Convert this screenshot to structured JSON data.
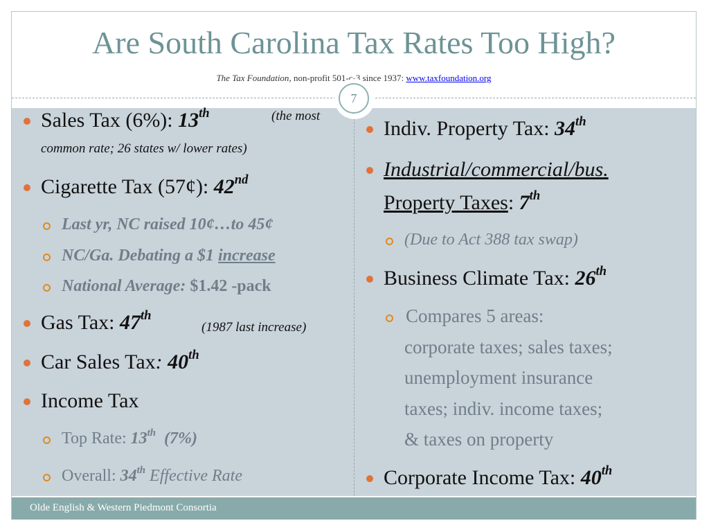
{
  "header": {
    "title": "Are South Carolina Tax Rates Too High?",
    "subtitle_org": "The Tax Foundation",
    "subtitle_desc": ", non-profit 501-c-3 since 1937: ",
    "subtitle_link": "www.taxfoundation.org"
  },
  "slide_number": "7",
  "left": {
    "sales_tax": {
      "label": "Sales Tax (6%): ",
      "rank": "13",
      "suffix": "th",
      "note1": "(the most",
      "note2": "common rate; 26 states w/ lower rates)"
    },
    "cigarette_tax": {
      "label": "Cigarette Tax (57¢): ",
      "rank": "42",
      "suffix": "nd"
    },
    "cig_sub1": "Last yr, NC raised 10¢…to 45¢",
    "cig_sub2_a": "NC/Ga. Debating a $1 ",
    "cig_sub2_b": "increase",
    "cig_sub3_a": "National Average:",
    "cig_sub3_b": " $1.42 -pack",
    "gas_tax": {
      "label": "Gas Tax: ",
      "rank": "47",
      "suffix": "th",
      "note": "(1987 last increase)"
    },
    "car_sales_tax": {
      "label": "Car Sales Tax",
      "colon": ": ",
      "rank": "40",
      "suffix": "th"
    },
    "income_tax": "Income Tax",
    "income_sub1": {
      "label": "Top Rate: ",
      "rank": "13",
      "suffix": "th",
      "extra": "(7%)"
    },
    "income_sub2": {
      "label": "Overall: ",
      "rank": "34",
      "suffix": "th",
      "extra": " Effective Rate"
    }
  },
  "right": {
    "indiv_property": {
      "label": "Indiv. Property Tax: ",
      "rank": "34",
      "suffix": "th"
    },
    "industrial_line1": "Industrial/commercial/bus.",
    "industrial_line2": "Property Taxes",
    "industrial_colon": ": ",
    "industrial_rank": "7",
    "industrial_suffix": "th",
    "act388": "(Due to Act 388 tax swap)",
    "business_climate": {
      "label": "Business Climate Tax: ",
      "rank": "26",
      "suffix": "th"
    },
    "compares": [
      " Compares 5 areas:",
      "corporate taxes; sales taxes;",
      "unemployment insurance",
      "taxes; indiv. income taxes;",
      "& taxes on property"
    ],
    "corporate_income": {
      "label": "Corporate Income Tax: ",
      "rank": "40",
      "suffix": "th"
    }
  },
  "footer": {
    "text": "Olde English & Western Piedmont Consortia"
  },
  "colors": {
    "title": "#6d9396",
    "content_bg": "#c9d3da",
    "footer_bg": "#88aaab",
    "bullet": "#e0733a",
    "sub_bullet": "#e08a1e",
    "sub_text": "#707e8a"
  }
}
